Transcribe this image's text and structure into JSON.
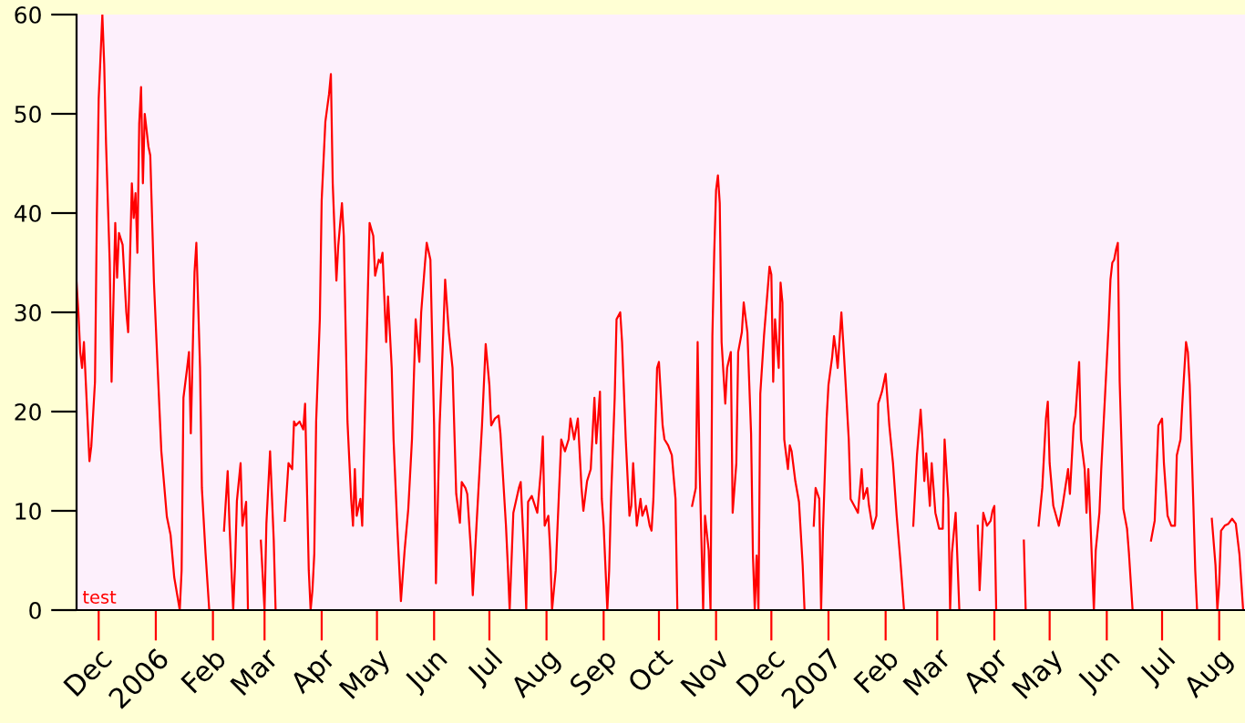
{
  "chart_data": {
    "type": "line",
    "x": [
      "2005-11-19",
      "2005-11-20",
      "2005-11-21",
      "2005-11-22",
      "2005-11-23",
      "2005-11-24",
      "2005-11-26",
      "2005-11-27",
      "2005-11-29",
      "2005-11-30",
      "2005-12-01",
      "2005-12-03",
      "2005-12-04",
      "2005-12-05",
      "2005-12-07",
      "2005-12-08",
      "2005-12-09",
      "2005-12-10",
      "2005-12-11",
      "2005-12-12",
      "2005-12-14",
      "2005-12-16",
      "2005-12-17",
      "2005-12-19",
      "2005-12-20",
      "2005-12-21",
      "2005-12-22",
      "2005-12-23",
      "2005-12-24",
      "2005-12-25",
      "2005-12-26",
      "2005-12-28",
      "2005-12-29",
      "2005-12-31",
      "2006-01-02",
      "2006-01-04",
      "2006-01-07",
      "2006-01-09",
      "2006-01-11",
      "2006-01-14",
      "2006-01-15",
      "2006-01-16",
      "2006-01-18",
      "2006-01-19",
      "2006-01-20",
      "2006-01-22",
      "2006-01-23",
      "2006-01-25",
      "2006-01-26",
      "2006-01-28",
      "2006-01-30",
      "2006-02-03",
      "2006-02-07",
      "2006-02-09",
      "2006-02-10",
      "2006-02-12",
      "2006-02-13",
      "2006-02-14",
      "2006-02-16",
      "2006-02-17",
      "2006-02-19",
      "2006-02-20",
      "2006-02-24",
      "2006-02-27",
      "2006-03-01",
      "2006-03-02",
      "2006-03-04",
      "2006-03-06",
      "2006-03-07",
      "2006-03-09",
      "2006-03-12",
      "2006-03-14",
      "2006-03-16",
      "2006-03-17",
      "2006-03-18",
      "2006-03-20",
      "2006-03-22",
      "2006-03-23",
      "2006-03-25",
      "2006-03-26",
      "2006-03-27",
      "2006-03-28",
      "2006-03-29",
      "2006-03-31",
      "2006-04-01",
      "2006-04-03",
      "2006-04-05",
      "2006-04-06",
      "2006-04-07",
      "2006-04-09",
      "2006-04-10",
      "2006-04-12",
      "2006-04-13",
      "2006-04-15",
      "2006-04-17",
      "2006-04-18",
      "2006-04-19",
      "2006-04-20",
      "2006-04-22",
      "2006-04-23",
      "2006-04-26",
      "2006-04-27",
      "2006-04-29",
      "2006-04-30",
      "2006-05-02",
      "2006-05-03",
      "2006-05-04",
      "2006-05-06",
      "2006-05-07",
      "2006-05-09",
      "2006-05-10",
      "2006-05-12",
      "2006-05-14",
      "2006-05-16",
      "2006-05-18",
      "2006-05-20",
      "2006-05-22",
      "2006-05-24",
      "2006-05-25",
      "2006-05-27",
      "2006-05-28",
      "2006-05-30",
      "2006-06-01",
      "2006-06-02",
      "2006-06-04",
      "2006-06-06",
      "2006-06-07",
      "2006-06-09",
      "2006-06-11",
      "2006-06-13",
      "2006-06-15",
      "2006-06-16",
      "2006-06-18",
      "2006-06-19",
      "2006-06-21",
      "2006-06-22",
      "2006-06-24",
      "2006-06-27",
      "2006-06-29",
      "2006-07-01",
      "2006-07-02",
      "2006-07-04",
      "2006-07-06",
      "2006-07-07",
      "2006-07-10",
      "2006-07-11",
      "2006-07-12",
      "2006-07-14",
      "2006-07-17",
      "2006-07-18",
      "2006-07-20",
      "2006-07-21",
      "2006-07-22",
      "2006-07-24",
      "2006-07-27",
      "2006-07-29",
      "2006-07-30",
      "2006-07-31",
      "2006-08-02",
      "2006-08-03",
      "2006-08-04",
      "2006-08-06",
      "2006-08-07",
      "2006-08-09",
      "2006-08-11",
      "2006-08-13",
      "2006-08-14",
      "2006-08-16",
      "2006-08-18",
      "2006-08-20",
      "2006-08-21",
      "2006-08-23",
      "2006-08-25",
      "2006-08-27",
      "2006-08-28",
      "2006-08-30",
      "2006-08-31",
      "2006-09-01",
      "2006-09-03",
      "2006-09-04",
      "2006-09-05",
      "2006-09-07",
      "2006-09-08",
      "2006-09-10",
      "2006-09-11",
      "2006-09-13",
      "2006-09-15",
      "2006-09-16",
      "2006-09-17",
      "2006-09-19",
      "2006-09-21",
      "2006-09-22",
      "2006-09-24",
      "2006-09-26",
      "2006-09-27",
      "2006-09-28",
      "2006-09-30",
      "2006-10-01",
      "2006-10-03",
      "2006-10-04",
      "2006-10-06",
      "2006-10-08",
      "2006-10-10",
      "2006-10-11",
      "2006-10-16",
      "2006-10-19",
      "2006-10-21",
      "2006-10-22",
      "2006-10-23",
      "2006-10-25",
      "2006-10-26",
      "2006-10-28",
      "2006-10-29",
      "2006-10-30",
      "2006-10-31",
      "2006-11-01",
      "2006-11-02",
      "2006-11-03",
      "2006-11-04",
      "2006-11-06",
      "2006-11-07",
      "2006-11-09",
      "2006-11-10",
      "2006-11-12",
      "2006-11-13",
      "2006-11-15",
      "2006-11-16",
      "2006-11-18",
      "2006-11-20",
      "2006-11-21",
      "2006-11-22",
      "2006-11-23",
      "2006-11-24",
      "2006-11-25",
      "2006-11-27",
      "2006-11-30",
      "2006-12-01",
      "2006-12-02",
      "2006-12-03",
      "2006-12-05",
      "2006-12-06",
      "2006-12-07",
      "2006-12-08",
      "2006-12-10",
      "2006-12-11",
      "2006-12-12",
      "2006-12-14",
      "2006-12-16",
      "2006-12-18",
      "2006-12-19",
      "2006-12-23",
      "2006-12-24",
      "2006-12-25",
      "2006-12-27",
      "2006-12-28",
      "2006-12-29",
      "2006-12-31",
      "2007-01-01",
      "2007-01-03",
      "2007-01-04",
      "2007-01-05",
      "2007-01-06",
      "2007-01-08",
      "2007-01-09",
      "2007-01-10",
      "2007-01-12",
      "2007-01-13",
      "2007-01-15",
      "2007-01-17",
      "2007-01-19",
      "2007-01-20",
      "2007-01-22",
      "2007-01-23",
      "2007-01-25",
      "2007-01-27",
      "2007-01-28",
      "2007-01-30",
      "2007-02-01",
      "2007-02-03",
      "2007-02-05",
      "2007-02-07",
      "2007-02-09",
      "2007-02-11",
      "2007-02-14",
      "2007-02-16",
      "2007-02-18",
      "2007-02-20",
      "2007-02-21",
      "2007-02-22",
      "2007-02-23",
      "2007-02-25",
      "2007-02-26",
      "2007-02-28",
      "2007-03-02",
      "2007-03-04",
      "2007-03-05",
      "2007-03-07",
      "2007-03-08",
      "2007-03-09",
      "2007-03-11",
      "2007-03-13",
      "2007-03-20",
      "2007-03-23",
      "2007-03-24",
      "2007-03-26",
      "2007-03-28",
      "2007-03-30",
      "2007-03-31",
      "2007-04-01",
      "2007-04-02",
      "2007-04-10",
      "2007-04-17",
      "2007-04-18",
      "2007-04-22",
      "2007-04-25",
      "2007-04-27",
      "2007-04-29",
      "2007-04-30",
      "2007-05-01",
      "2007-05-03",
      "2007-05-06",
      "2007-05-08",
      "2007-05-11",
      "2007-05-12",
      "2007-05-14",
      "2007-05-15",
      "2007-05-17",
      "2007-05-18",
      "2007-05-20",
      "2007-05-21",
      "2007-05-22",
      "2007-05-23",
      "2007-05-25",
      "2007-05-26",
      "2007-05-28",
      "2007-05-29",
      "2007-05-31",
      "2007-06-02",
      "2007-06-03",
      "2007-06-04",
      "2007-06-05",
      "2007-06-06",
      "2007-06-07",
      "2007-06-08",
      "2007-06-10",
      "2007-06-12",
      "2007-06-13",
      "2007-06-15",
      "2007-06-22",
      "2007-06-25",
      "2007-06-27",
      "2007-06-29",
      "2007-07-01",
      "2007-07-02",
      "2007-07-04",
      "2007-07-06",
      "2007-07-08",
      "2007-07-09",
      "2007-07-11",
      "2007-07-12",
      "2007-07-14",
      "2007-07-15",
      "2007-07-16",
      "2007-07-18",
      "2007-07-19",
      "2007-07-20",
      "2007-07-25",
      "2007-07-28",
      "2007-07-30",
      "2007-07-31",
      "2007-08-01",
      "2007-08-02",
      "2007-08-04",
      "2007-08-06",
      "2007-08-08",
      "2007-08-10",
      "2007-08-12",
      "2007-08-14"
    ],
    "series": [
      {
        "color": "#ff0000",
        "values": [
          33,
          30,
          26,
          24.4,
          27,
          23,
          15,
          16.5,
          23,
          39.5,
          51.5,
          60,
          55,
          47,
          35,
          23,
          31,
          39,
          33.5,
          38,
          36.8,
          30,
          28,
          43,
          39.5,
          42,
          36,
          49,
          52.7,
          43,
          50,
          46.7,
          45.8,
          33,
          24.4,
          16,
          9.4,
          7.6,
          3.3,
          0,
          4,
          21.4,
          24.4,
          26,
          17.8,
          34,
          37,
          24.4,
          12.3,
          5.7,
          0,
          null,
          8,
          14,
          8.5,
          0,
          4.5,
          11,
          14.8,
          8.5,
          10.9,
          0,
          null,
          7,
          0,
          8.7,
          16,
          7,
          0,
          null,
          9,
          14.8,
          14.2,
          19,
          18.6,
          19,
          18.2,
          20.8,
          4,
          0,
          2,
          5.7,
          19,
          29.3,
          41.3,
          49.2,
          52,
          54,
          43,
          33.2,
          36.7,
          41,
          37.7,
          19,
          11.2,
          8.5,
          14.2,
          9.5,
          11.2,
          8.5,
          31.6,
          39,
          37.7,
          33.7,
          35.3,
          35,
          36,
          27,
          31.6,
          24.4,
          17.2,
          8.5,
          0.9,
          6,
          10.2,
          17.2,
          29.3,
          25,
          30,
          34.8,
          37,
          35.3,
          18.6,
          2.7,
          18.6,
          28,
          33.3,
          28,
          24.4,
          11.7,
          8.8,
          12.9,
          12.3,
          11.7,
          6,
          1.5,
          8.5,
          18.6,
          26.8,
          22.7,
          18.6,
          19.3,
          19.6,
          17.8,
          8.5,
          4.5,
          0,
          9.8,
          12.3,
          12.9,
          5.1,
          0,
          10.9,
          11.5,
          9.8,
          14.2,
          17.5,
          8.5,
          9.5,
          6,
          0,
          4,
          8.5,
          17.2,
          16,
          17.2,
          19.3,
          17.2,
          19.3,
          12.3,
          10,
          13,
          14.2,
          21.4,
          16.8,
          22,
          11.2,
          8.5,
          0,
          4,
          11.2,
          21.4,
          29.3,
          30,
          27,
          17.2,
          9.5,
          10.5,
          14.8,
          8.5,
          11.2,
          9.5,
          10.5,
          8.5,
          8,
          11.2,
          24.4,
          25,
          18.6,
          17.2,
          16.6,
          15.6,
          11.2,
          0,
          null,
          10.5,
          12.3,
          27,
          14.8,
          0,
          9.5,
          6,
          0,
          27.6,
          36,
          42.3,
          43.8,
          41,
          27,
          20.8,
          24.4,
          26,
          9.8,
          14.8,
          26,
          28,
          31,
          28,
          17.8,
          5.5,
          0,
          5.5,
          0,
          21.8,
          27.6,
          34.6,
          33.8,
          23,
          29.3,
          24.4,
          33,
          31,
          17.2,
          14.2,
          16.6,
          16,
          13,
          10.9,
          4.5,
          0,
          null,
          8.5,
          12.3,
          11.2,
          0,
          8,
          19.3,
          22.7,
          25.5,
          27.6,
          26.2,
          24.4,
          30,
          27,
          23.8,
          17.2,
          11.2,
          10.5,
          9.8,
          14.2,
          11.2,
          12.3,
          10.5,
          8.2,
          9.5,
          20.8,
          22,
          23.8,
          18.6,
          14.8,
          9.5,
          5,
          0,
          null,
          8.5,
          15.6,
          20.2,
          17.2,
          13,
          15.8,
          10.5,
          14.8,
          9.8,
          8.2,
          8.2,
          17.2,
          11.2,
          0,
          5.8,
          9.8,
          0,
          null,
          8.5,
          2,
          9.8,
          8.5,
          9,
          10,
          10.5,
          0,
          null,
          7,
          0,
          null,
          8.5,
          12.3,
          19.3,
          21,
          14.8,
          10.5,
          8.5,
          10.5,
          14.2,
          11.7,
          18.6,
          19.6,
          25,
          17.2,
          14.2,
          9.8,
          14.2,
          9.5,
          0,
          6,
          9.8,
          14.2,
          21.4,
          28.7,
          33.3,
          35,
          35.3,
          36.3,
          37,
          23,
          10.2,
          8.2,
          5.8,
          0,
          null,
          7,
          9,
          18.6,
          19.3,
          14.8,
          9.5,
          8.5,
          8.5,
          15.6,
          17.2,
          20.8,
          27,
          26,
          22.7,
          10.5,
          4,
          0,
          null,
          9.2,
          4.5,
          0,
          2.7,
          8,
          8.5,
          8.7,
          9.2,
          8.7,
          5.6,
          0
        ]
      }
    ],
    "xlim": [
      "2005-11-19",
      "2007-08-15"
    ],
    "xticks": [
      {
        "value": "2005-12-01",
        "label": "Dec"
      },
      {
        "value": "2006-01-01",
        "label": "2006"
      },
      {
        "value": "2006-02-01",
        "label": "Feb"
      },
      {
        "value": "2006-03-01",
        "label": "Mar"
      },
      {
        "value": "2006-04-01",
        "label": "Apr"
      },
      {
        "value": "2006-05-01",
        "label": "May"
      },
      {
        "value": "2006-06-01",
        "label": "Jun"
      },
      {
        "value": "2006-07-01",
        "label": "Jul"
      },
      {
        "value": "2006-08-01",
        "label": "Aug"
      },
      {
        "value": "2006-09-01",
        "label": "Sep"
      },
      {
        "value": "2006-10-01",
        "label": "Oct"
      },
      {
        "value": "2006-11-01",
        "label": "Nov"
      },
      {
        "value": "2006-12-01",
        "label": "Dec"
      },
      {
        "value": "2007-01-01",
        "label": "2007"
      },
      {
        "value": "2007-02-01",
        "label": "Feb"
      },
      {
        "value": "2007-03-01",
        "label": "Mar"
      },
      {
        "value": "2007-04-01",
        "label": "Apr"
      },
      {
        "value": "2007-05-01",
        "label": "May"
      },
      {
        "value": "2007-06-01",
        "label": "Jun"
      },
      {
        "value": "2007-07-01",
        "label": "Jul"
      },
      {
        "value": "2007-08-01",
        "label": "Aug"
      }
    ],
    "ylim": [
      0,
      60
    ],
    "yticks": [
      0,
      10,
      20,
      30,
      40,
      50,
      60
    ],
    "annotations": [
      "test"
    ],
    "grid": false,
    "marker": "none",
    "line_style": "solid"
  }
}
